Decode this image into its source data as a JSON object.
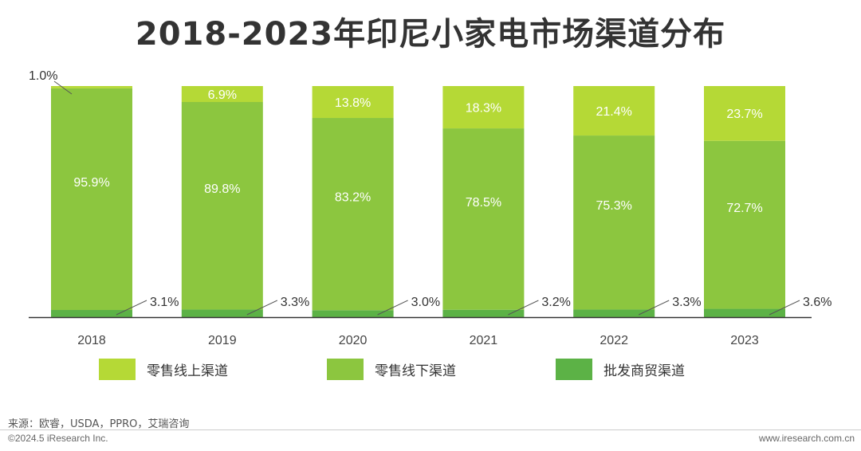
{
  "page": {
    "title": "2018-2023年印尼小家电市场渠道分布",
    "source": "来源：欧睿，USDA，PPRO，艾瑞咨询",
    "copyright": "©2024.5 iResearch Inc.",
    "website": "www.iresearch.com.cn"
  },
  "chart_data": {
    "type": "bar",
    "stacked": true,
    "categories": [
      "2018",
      "2019",
      "2020",
      "2021",
      "2022",
      "2023"
    ],
    "series": [
      {
        "name": "批发商贸渠道",
        "values": [
          3.1,
          3.3,
          3.0,
          3.2,
          3.3,
          3.6
        ],
        "labels": [
          "3.1%",
          "3.3%",
          "3.0%",
          "3.2%",
          "3.3%",
          "3.6%"
        ],
        "color": "#5cb246"
      },
      {
        "name": "零售线下渠道",
        "values": [
          95.9,
          89.8,
          83.2,
          78.5,
          75.3,
          72.7
        ],
        "labels": [
          "95.9%",
          "89.8%",
          "83.2%",
          "78.5%",
          "75.3%",
          "72.7%"
        ],
        "color": "#8cc63f"
      },
      {
        "name": "零售线上渠道",
        "values": [
          1.0,
          6.9,
          13.8,
          18.3,
          21.4,
          23.7
        ],
        "labels": [
          "1.0%",
          "6.9%",
          "13.8%",
          "18.3%",
          "21.4%",
          "23.7%"
        ],
        "color": "#b5d936"
      }
    ],
    "legend": [
      "零售线上渠道",
      "零售线下渠道",
      "批发商贸渠道"
    ],
    "ylim": [
      0,
      100
    ],
    "grid": false,
    "legend_position": "bottom"
  }
}
